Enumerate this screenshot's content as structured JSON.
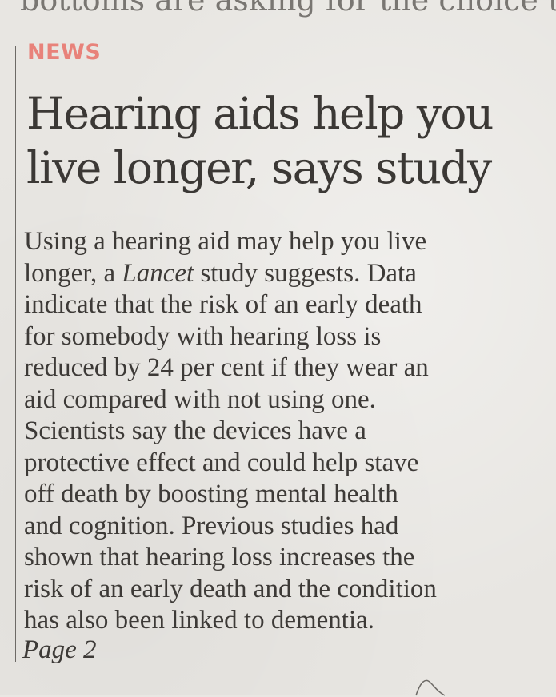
{
  "bleed_text": "bottoms are asking for the choice to",
  "article": {
    "section": "NEWS",
    "headline_lines": [
      "Hearing aids help you",
      "live longer, says study"
    ],
    "body_lines": [
      "Using a hearing aid may help you live",
      "",
      "indicate that the risk of an early death",
      "for somebody with hearing loss is",
      "reduced by 24 per cent if they wear an",
      "aid compared with not using one.",
      "Scientists say the devices have a",
      "protective effect and could help stave",
      "off death by boosting mental health",
      "and cognition. Previous studies had",
      "shown that hearing loss increases the",
      "risk of an early death and the condition",
      "has also been linked to dementia."
    ],
    "body_line2": {
      "before": "longer, a ",
      "italic": "Lancet",
      "after": " study suggests. Data"
    },
    "page_ref": "Page 2"
  },
  "colors": {
    "section_label": "#e8827a",
    "ink": "#3b3835",
    "paper": "#e8e6e2"
  }
}
